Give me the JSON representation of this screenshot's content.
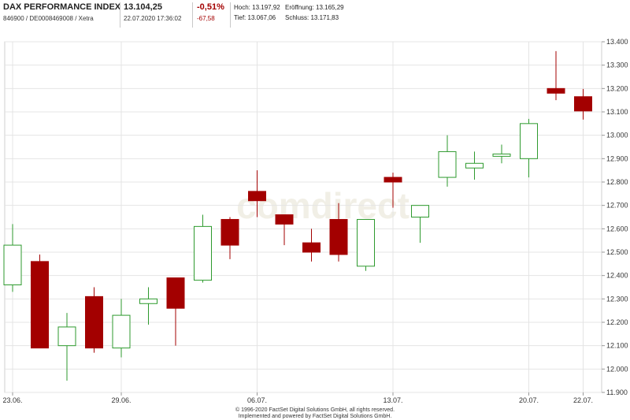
{
  "header": {
    "name": "DAX PERFORMANCE INDEX",
    "ids": "846900 / DE0008469008 / Xetra",
    "price": "13.104,25",
    "datetime": "22.07.2020 17:36:02",
    "change_pct": "-0,51%",
    "change_abs": "-67,58",
    "high_label": "Hoch:",
    "high_value": "13.197,92",
    "low_label": "Tief:",
    "low_value": "13.067,06",
    "open_label": "Eröffnung:",
    "open_value": "13.165,29",
    "close_label": "Schluss:",
    "close_value": "13.171,83"
  },
  "colors": {
    "up": "#2e9a2e",
    "down": "#a30000",
    "grid": "#e4e4e4",
    "negative_text": "#a30000"
  },
  "watermark": "comdirect",
  "footer": {
    "line1": "© 1996-2020 FactSet Digital Solutions GmbH, all rights reserved.",
    "line2": "Implemented and powered by FactSet Digital Solutions GmbH."
  },
  "chart_data": {
    "type": "candlestick",
    "ylim": [
      11900,
      13400
    ],
    "y_ticks": [
      "11.900",
      "12.000",
      "12.100",
      "12.200",
      "12.300",
      "12.400",
      "12.500",
      "12.600",
      "12.700",
      "12.800",
      "12.900",
      "13.000",
      "13.100",
      "13.200",
      "13.300",
      "13.400"
    ],
    "x_ticks": [
      {
        "label": "23.06.",
        "index": 0
      },
      {
        "label": "29.06.",
        "index": 4
      },
      {
        "label": "06.07.",
        "index": 9
      },
      {
        "label": "13.07.",
        "index": 14
      },
      {
        "label": "20.07.",
        "index": 19
      },
      {
        "label": "22.07.",
        "index": 21
      }
    ],
    "candles": [
      {
        "open": 12360,
        "close": 12530,
        "high": 12620,
        "low": 12330
      },
      {
        "open": 12460,
        "close": 12090,
        "high": 12490,
        "low": 12090
      },
      {
        "open": 12100,
        "close": 12180,
        "high": 12240,
        "low": 11950
      },
      {
        "open": 12310,
        "close": 12090,
        "high": 12350,
        "low": 12070
      },
      {
        "open": 12090,
        "close": 12230,
        "high": 12300,
        "low": 12050
      },
      {
        "open": 12280,
        "close": 12300,
        "high": 12350,
        "low": 12190
      },
      {
        "open": 12390,
        "close": 12260,
        "high": 12390,
        "low": 12100
      },
      {
        "open": 12380,
        "close": 12610,
        "high": 12660,
        "low": 12370
      },
      {
        "open": 12640,
        "close": 12530,
        "high": 12650,
        "low": 12470
      },
      {
        "open": 12760,
        "close": 12720,
        "high": 12850,
        "low": 12650
      },
      {
        "open": 12660,
        "close": 12620,
        "high": 12660,
        "low": 12530
      },
      {
        "open": 12540,
        "close": 12500,
        "high": 12600,
        "low": 12460
      },
      {
        "open": 12640,
        "close": 12490,
        "high": 12710,
        "low": 12460
      },
      {
        "open": 12440,
        "close": 12640,
        "high": 12640,
        "low": 12420
      },
      {
        "open": 12820,
        "close": 12800,
        "high": 12840,
        "low": 12690
      },
      {
        "open": 12650,
        "close": 12700,
        "high": 12700,
        "low": 12540
      },
      {
        "open": 12820,
        "close": 12930,
        "high": 13000,
        "low": 12780
      },
      {
        "open": 12860,
        "close": 12880,
        "high": 12930,
        "low": 12810
      },
      {
        "open": 12910,
        "close": 12920,
        "high": 12960,
        "low": 12880
      },
      {
        "open": 12900,
        "close": 13050,
        "high": 13070,
        "low": 12820
      },
      {
        "open": 13200,
        "close": 13180,
        "high": 13360,
        "low": 13150
      },
      {
        "open": 13165,
        "close": 13104,
        "high": 13198,
        "low": 13067
      }
    ]
  }
}
